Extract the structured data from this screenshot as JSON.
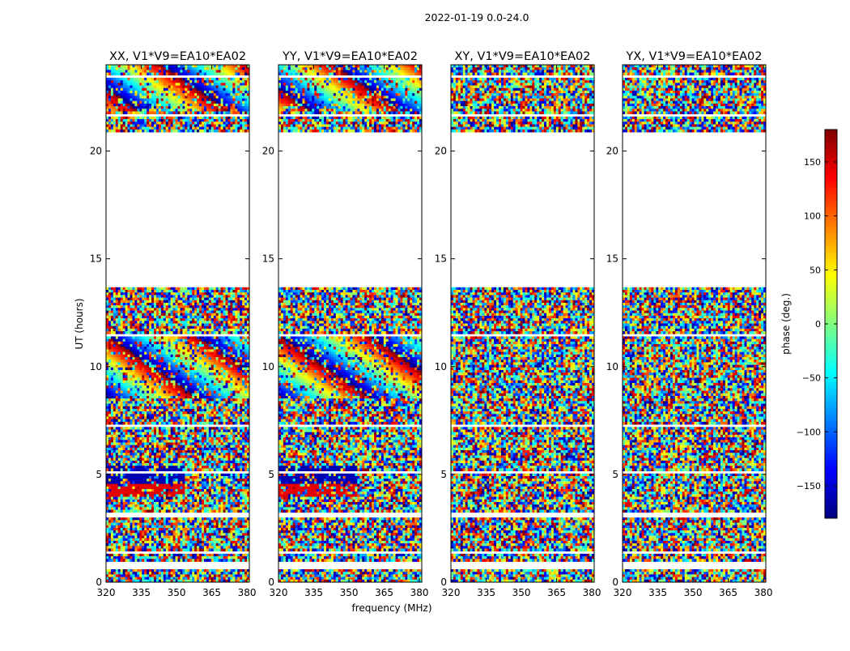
{
  "figure_title": "2022-01-19 0.0-24.0",
  "chart_data": {
    "type": "heatmap",
    "panels": [
      {
        "title": "XX, V1*V9=EA10*EA02"
      },
      {
        "title": "YY, V1*V9=EA10*EA02"
      },
      {
        "title": "XY, V1*V9=EA10*EA02"
      },
      {
        "title": "YX, V1*V9=EA10*EA02"
      }
    ],
    "xlabel": "frequency (MHz)",
    "ylabel": "UT (hours)",
    "xlim": [
      320,
      381
    ],
    "ylim": [
      0,
      24
    ],
    "xticks": [
      320,
      335,
      350,
      365,
      380
    ],
    "yticks": [
      0,
      5,
      10,
      15,
      20
    ],
    "colorbar": {
      "label": "phase (deg.)",
      "range": [
        -180,
        180
      ],
      "ticks": [
        150,
        100,
        50,
        0,
        -50,
        -100,
        -150
      ],
      "tick_labels": [
        "150",
        "100",
        "50",
        "0",
        "−50",
        "−100",
        "−150"
      ],
      "colormap": "jet"
    },
    "data_gaps_ut_hours": [
      [
        0.55,
        0.9
      ],
      [
        1.35,
        1.45
      ],
      [
        3.05,
        3.2
      ],
      [
        5.05,
        5.15
      ],
      [
        7.2,
        7.35
      ],
      [
        11.45,
        11.55
      ],
      [
        13.7,
        20.85
      ],
      [
        21.55,
        21.75
      ],
      [
        23.35,
        23.5
      ]
    ],
    "grid": false
  }
}
